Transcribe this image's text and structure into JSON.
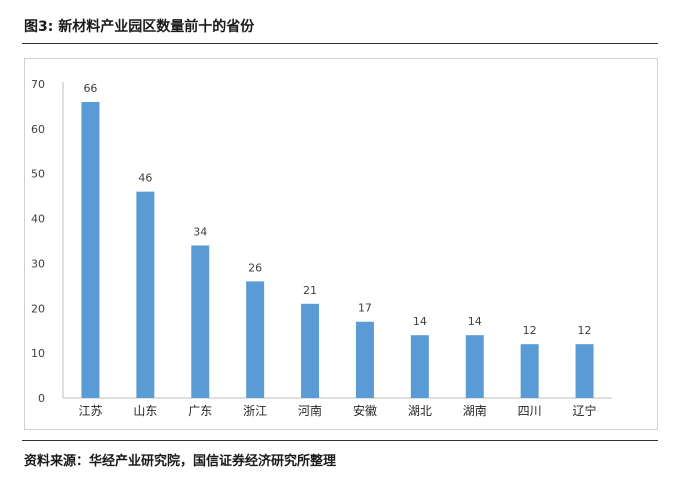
{
  "figure": {
    "title": "图3: 新材料产业园区数量前十的省份",
    "source": "资料来源：华经产业研究院，国信证券经济研究所整理"
  },
  "colors": {
    "bar": "#5b9bd5",
    "axis": "#bfbfbf",
    "text": "#404040"
  },
  "chart_data": {
    "type": "bar",
    "title": "",
    "xlabel": "",
    "ylabel": "",
    "categories": [
      "江苏",
      "山东",
      "广东",
      "浙江",
      "河南",
      "安徽",
      "湖北",
      "湖南",
      "四川",
      "辽宁"
    ],
    "values": [
      66,
      46,
      34,
      26,
      21,
      17,
      14,
      14,
      12,
      12
    ],
    "ylim": [
      0,
      70
    ],
    "yticks": [
      0,
      10,
      20,
      30,
      40,
      50,
      60,
      70
    ],
    "grid": false,
    "data_labels": true
  }
}
